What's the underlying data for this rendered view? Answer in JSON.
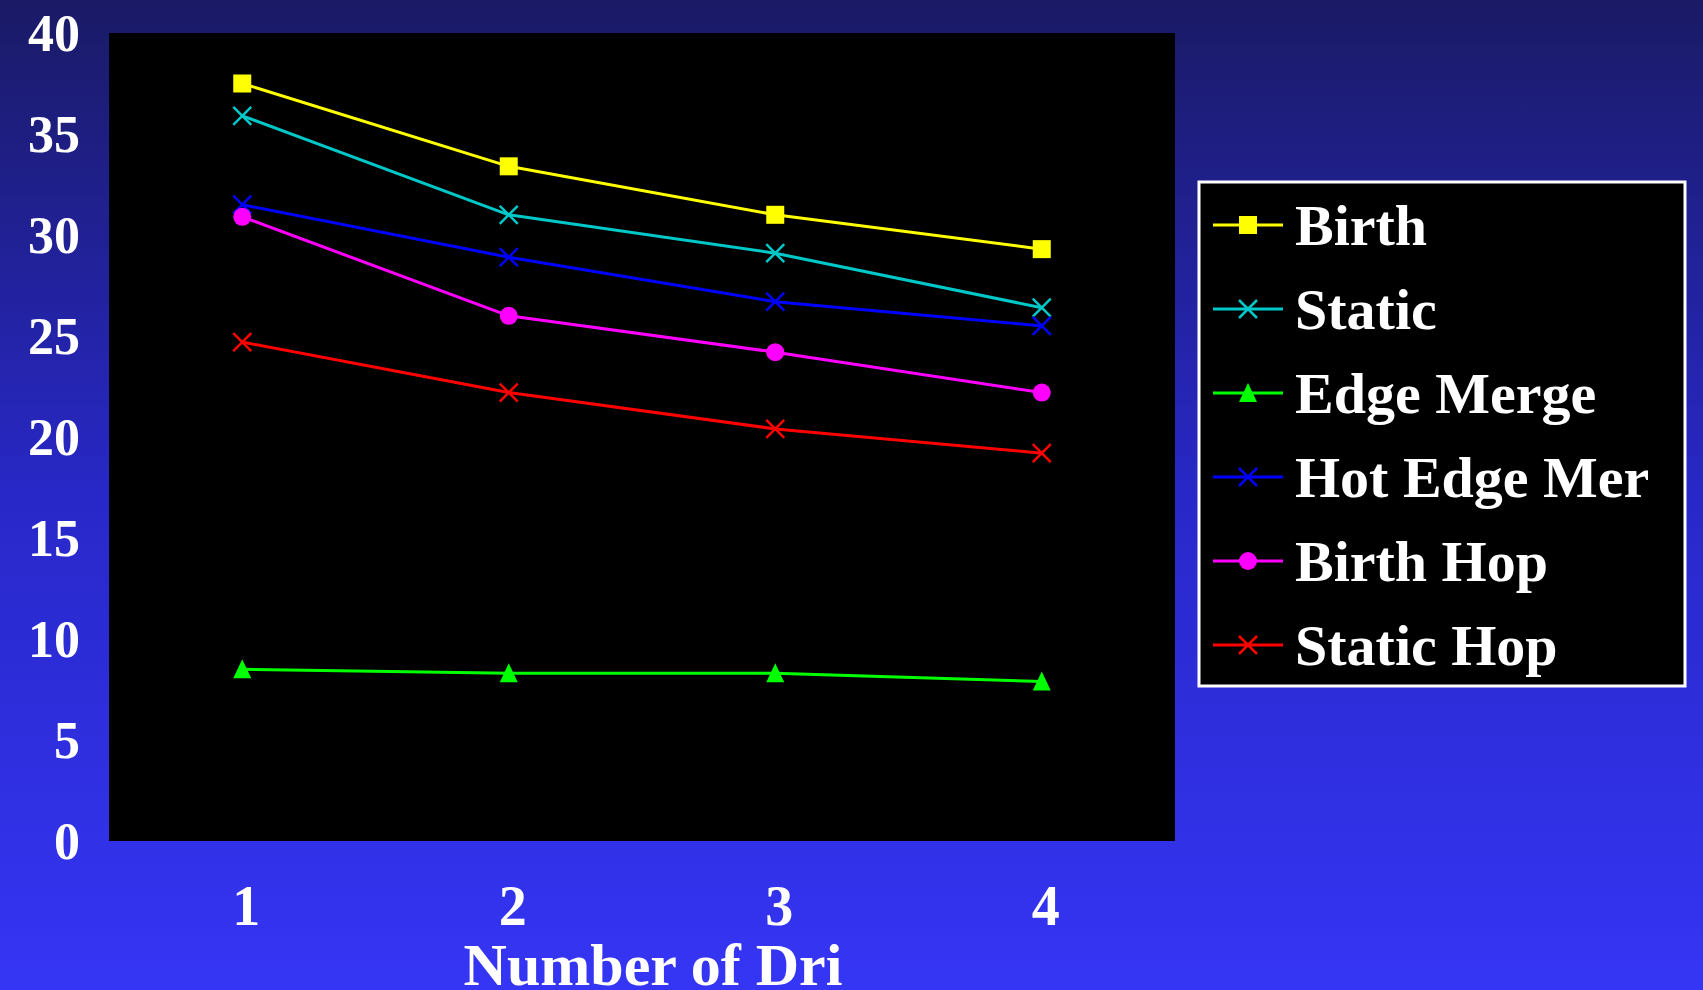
{
  "chart_data": {
    "type": "line",
    "xlabel": "Number of Dri",
    "categories": [
      "1",
      "2",
      "3",
      "4"
    ],
    "ylim": [
      0,
      40
    ],
    "yticks": [
      0,
      5,
      10,
      15,
      20,
      25,
      30,
      35,
      40
    ],
    "grid": false,
    "legend": "right",
    "series": [
      {
        "name": "Birth",
        "color": "#ffff00",
        "marker": "square",
        "values": [
          37.5,
          33.4,
          31.0,
          29.3
        ]
      },
      {
        "name": "Static",
        "color": "#00c8c8",
        "marker": "cross",
        "values": [
          35.9,
          31.0,
          29.1,
          26.4
        ]
      },
      {
        "name": "Edge Merge",
        "color": "#00ff00",
        "marker": "triangle",
        "values": [
          8.5,
          8.3,
          8.3,
          7.9
        ]
      },
      {
        "name": "Hot Edge Mer",
        "color": "#0000ff",
        "marker": "cross",
        "values": [
          31.5,
          28.9,
          26.7,
          25.5
        ]
      },
      {
        "name": "Birth Hop",
        "color": "#ff00ff",
        "marker": "circle",
        "values": [
          30.9,
          26.0,
          24.2,
          22.2
        ]
      },
      {
        "name": "Static Hop",
        "color": "#ff0000",
        "marker": "cross",
        "values": [
          24.7,
          22.2,
          20.4,
          19.2
        ]
      }
    ]
  }
}
